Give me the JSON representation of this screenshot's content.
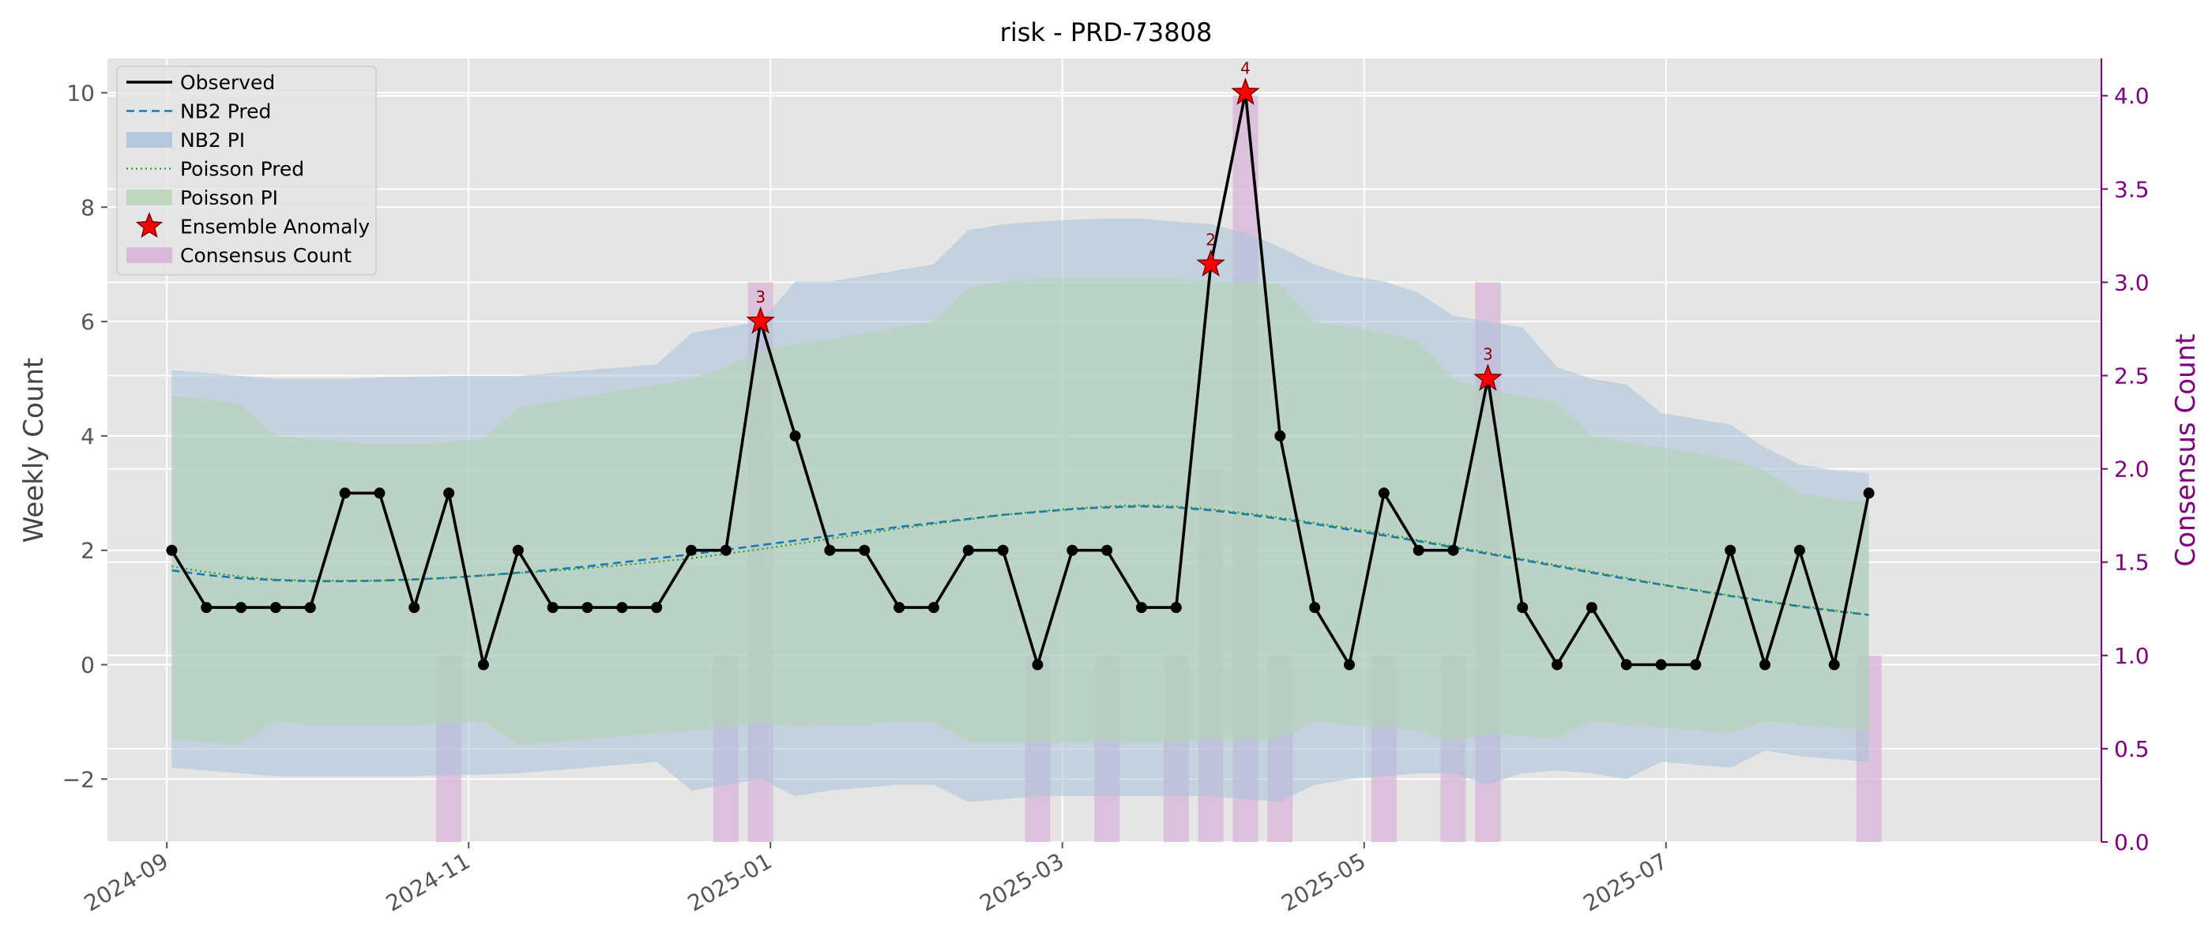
{
  "chart_data": {
    "type": "line",
    "title": "risk - PRD-73808",
    "ylabel": "Weekly Count",
    "y2label": "Consensus Count",
    "ylim": [
      -3.1,
      10.6
    ],
    "y2lim": [
      0.0,
      4.2
    ],
    "xlim": [
      "2024-08-20",
      "2025-09-27"
    ],
    "grid": true,
    "legend_position": "upper left",
    "colors": {
      "observed": "#000000",
      "nb2_pred": "#1f77b4",
      "nb2_pi": "#a9c2db",
      "poisson_pred": "#2ca02c",
      "poisson_pi": "#b5d3b5",
      "anomaly": "#ff0000",
      "consensus": "#d8b4d8",
      "y2_axis": "#800080",
      "background": "#e5e5e5"
    },
    "x_ticks": [
      {
        "date": "2024-09-01",
        "label": "2024-09"
      },
      {
        "date": "2024-11-01",
        "label": "2024-11"
      },
      {
        "date": "2025-01-01",
        "label": "2025-01"
      },
      {
        "date": "2025-03-01",
        "label": "2025-03"
      },
      {
        "date": "2025-05-01",
        "label": "2025-05"
      },
      {
        "date": "2025-07-01",
        "label": "2025-07"
      }
    ],
    "y_ticks": [
      {
        "value": -2,
        "label": "−2"
      },
      {
        "value": 0,
        "label": "0"
      },
      {
        "value": 2,
        "label": "2"
      },
      {
        "value": 4,
        "label": "4"
      },
      {
        "value": 6,
        "label": "6"
      },
      {
        "value": 8,
        "label": "8"
      },
      {
        "value": 10,
        "label": "10"
      }
    ],
    "y2_ticks": [
      {
        "value": 0.0,
        "label": "0.0"
      },
      {
        "value": 0.5,
        "label": "0.5"
      },
      {
        "value": 1.0,
        "label": "1.0"
      },
      {
        "value": 1.5,
        "label": "1.5"
      },
      {
        "value": 2.0,
        "label": "2.0"
      },
      {
        "value": 2.5,
        "label": "2.5"
      },
      {
        "value": 3.0,
        "label": "3.0"
      },
      {
        "value": 3.5,
        "label": "3.5"
      },
      {
        "value": 4.0,
        "label": "4.0"
      }
    ],
    "legend": [
      {
        "key": "observed",
        "label": "Observed"
      },
      {
        "key": "nb2_pred",
        "label": "NB2 Pred"
      },
      {
        "key": "nb2_pi",
        "label": "NB2 PI"
      },
      {
        "key": "poisson_pred",
        "label": "Poisson Pred"
      },
      {
        "key": "poisson_pi",
        "label": "Poisson PI"
      },
      {
        "key": "anomaly",
        "label": "Ensemble Anomaly"
      },
      {
        "key": "consensus",
        "label": "Consensus Count"
      }
    ],
    "dates": [
      "2024-09-02",
      "2024-09-09",
      "2024-09-16",
      "2024-09-23",
      "2024-09-30",
      "2024-10-07",
      "2024-10-14",
      "2024-10-21",
      "2024-10-28",
      "2024-11-04",
      "2024-11-11",
      "2024-11-18",
      "2024-11-25",
      "2024-12-02",
      "2024-12-09",
      "2024-12-16",
      "2024-12-23",
      "2024-12-30",
      "2025-01-06",
      "2025-01-13",
      "2025-01-20",
      "2025-01-27",
      "2025-02-03",
      "2025-02-10",
      "2025-02-17",
      "2025-02-24",
      "2025-03-03",
      "2025-03-10",
      "2025-03-17",
      "2025-03-24",
      "2025-03-31",
      "2025-04-07",
      "2025-04-14",
      "2025-04-21",
      "2025-04-28",
      "2025-05-05",
      "2025-05-12",
      "2025-05-19",
      "2025-05-26",
      "2025-06-02",
      "2025-06-09",
      "2025-06-16",
      "2025-06-23",
      "2025-06-30",
      "2025-07-07",
      "2025-07-14",
      "2025-07-21",
      "2025-07-28",
      "2025-08-04",
      "2025-08-11"
    ],
    "series": [
      {
        "name": "Observed",
        "values": [
          2,
          1,
          1,
          1,
          1,
          3,
          3,
          1,
          3,
          0,
          2,
          1,
          1,
          1,
          1,
          2,
          2,
          6,
          4,
          2,
          2,
          1,
          1,
          2,
          2,
          0,
          2,
          2,
          1,
          1,
          7,
          10,
          4,
          1,
          0,
          3,
          2,
          2,
          5,
          1,
          0,
          1,
          0,
          0,
          0,
          2,
          0,
          2,
          0,
          3
        ]
      },
      {
        "name": "NB2 Pred",
        "values": [
          1.65,
          1.57,
          1.51,
          1.48,
          1.46,
          1.46,
          1.47,
          1.49,
          1.52,
          1.56,
          1.61,
          1.66,
          1.72,
          1.79,
          1.86,
          1.93,
          2.01,
          2.09,
          2.17,
          2.25,
          2.33,
          2.41,
          2.48,
          2.55,
          2.62,
          2.67,
          2.72,
          2.75,
          2.77,
          2.75,
          2.7,
          2.63,
          2.55,
          2.46,
          2.36,
          2.26,
          2.16,
          2.05,
          1.94,
          1.83,
          1.72,
          1.61,
          1.5,
          1.4,
          1.3,
          1.2,
          1.11,
          1.02,
          0.94,
          0.87
        ]
      },
      {
        "name": "Poisson Pred",
        "values": [
          1.72,
          1.62,
          1.54,
          1.49,
          1.47,
          1.47,
          1.47,
          1.49,
          1.52,
          1.56,
          1.6,
          1.64,
          1.69,
          1.74,
          1.8,
          1.86,
          1.94,
          2.02,
          2.11,
          2.2,
          2.29,
          2.38,
          2.46,
          2.54,
          2.62,
          2.68,
          2.73,
          2.77,
          2.79,
          2.77,
          2.72,
          2.65,
          2.57,
          2.48,
          2.39,
          2.29,
          2.18,
          2.07,
          1.96,
          1.85,
          1.74,
          1.63,
          1.52,
          1.41,
          1.31,
          1.21,
          1.12,
          1.03,
          0.95,
          0.87
        ]
      }
    ],
    "nb2_pi_upper": [
      5.15,
      5.1,
      5.05,
      5.0,
      5.0,
      5.0,
      5.02,
      5.03,
      5.05,
      5.05,
      5.05,
      5.1,
      5.15,
      5.2,
      5.25,
      5.8,
      5.9,
      6.0,
      6.7,
      6.7,
      6.8,
      6.9,
      7.0,
      7.6,
      7.7,
      7.75,
      7.78,
      7.8,
      7.8,
      7.75,
      7.7,
      7.55,
      7.3,
      7.0,
      6.8,
      6.7,
      6.5,
      6.1,
      6.0,
      5.9,
      5.2,
      5.0,
      4.9,
      4.4,
      4.3,
      4.2,
      3.8,
      3.5,
      3.4,
      3.35
    ],
    "nb2_pi_lower": [
      -1.8,
      -1.85,
      -1.9,
      -1.95,
      -1.95,
      -1.95,
      -1.95,
      -1.95,
      -1.93,
      -1.92,
      -1.9,
      -1.85,
      -1.8,
      -1.75,
      -1.7,
      -2.2,
      -2.1,
      -2.0,
      -2.3,
      -2.2,
      -2.15,
      -2.1,
      -2.1,
      -2.4,
      -2.35,
      -2.3,
      -2.3,
      -2.3,
      -2.3,
      -2.3,
      -2.3,
      -2.35,
      -2.4,
      -2.1,
      -2.0,
      -1.95,
      -1.9,
      -1.9,
      -2.1,
      -1.9,
      -1.85,
      -1.9,
      -2.0,
      -1.7,
      -1.75,
      -1.8,
      -1.5,
      -1.6,
      -1.65,
      -1.7
    ],
    "poisson_pi_upper": [
      4.7,
      4.65,
      4.55,
      4.0,
      3.95,
      3.9,
      3.85,
      3.85,
      3.9,
      3.95,
      4.5,
      4.6,
      4.7,
      4.8,
      4.9,
      5.0,
      5.2,
      5.5,
      5.6,
      5.7,
      5.8,
      5.9,
      6.0,
      6.6,
      6.7,
      6.75,
      6.75,
      6.75,
      6.75,
      6.75,
      6.7,
      6.7,
      6.65,
      6.0,
      5.9,
      5.8,
      5.65,
      5.0,
      4.8,
      4.7,
      4.6,
      4.0,
      3.9,
      3.8,
      3.7,
      3.6,
      3.4,
      3.0,
      2.9,
      2.85
    ],
    "poisson_pi_lower": [
      -1.3,
      -1.35,
      -1.4,
      -1.0,
      -1.05,
      -1.05,
      -1.05,
      -1.05,
      -1.03,
      -1.0,
      -1.4,
      -1.35,
      -1.3,
      -1.25,
      -1.2,
      -1.15,
      -1.1,
      -1.0,
      -1.1,
      -1.05,
      -1.05,
      -1.0,
      -1.0,
      -1.35,
      -1.35,
      -1.35,
      -1.35,
      -1.35,
      -1.35,
      -1.35,
      -1.3,
      -1.3,
      -1.3,
      -1.0,
      -1.05,
      -1.1,
      -1.15,
      -1.35,
      -1.2,
      -1.25,
      -1.3,
      -1.0,
      -1.05,
      -1.1,
      -1.15,
      -1.2,
      -1.0,
      -1.05,
      -1.1,
      -1.15
    ],
    "anomalies": [
      {
        "date": "2024-12-30",
        "value": 6,
        "label": "3"
      },
      {
        "date": "2025-03-31",
        "value": 7,
        "label": "2"
      },
      {
        "date": "2025-04-07",
        "value": 10,
        "label": "4"
      },
      {
        "date": "2025-05-26",
        "value": 5,
        "label": "3"
      }
    ],
    "consensus_bars": [
      {
        "date": "2024-10-28",
        "value": 1
      },
      {
        "date": "2024-12-23",
        "value": 1
      },
      {
        "date": "2024-12-30",
        "value": 3
      },
      {
        "date": "2025-02-24",
        "value": 1
      },
      {
        "date": "2025-03-10",
        "value": 1
      },
      {
        "date": "2025-03-24",
        "value": 1
      },
      {
        "date": "2025-03-31",
        "value": 2
      },
      {
        "date": "2025-04-07",
        "value": 4
      },
      {
        "date": "2025-04-14",
        "value": 1
      },
      {
        "date": "2025-05-05",
        "value": 1
      },
      {
        "date": "2025-05-19",
        "value": 1
      },
      {
        "date": "2025-05-26",
        "value": 3
      },
      {
        "date": "2025-08-11",
        "value": 1
      }
    ]
  }
}
